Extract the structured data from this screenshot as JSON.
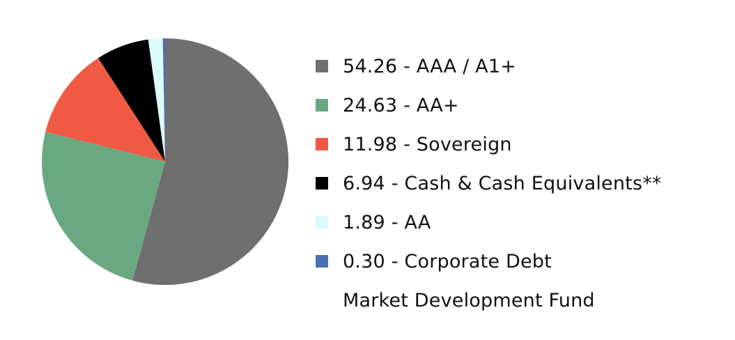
{
  "chart_data": {
    "type": "pie",
    "slices": [
      {
        "label": "54.26 - AAA / A1+",
        "value": 54.26,
        "color": "#6f6f6f"
      },
      {
        "label": "24.63 - AA+",
        "value": 24.63,
        "color": "#6aa882"
      },
      {
        "label": "11.98 - Sovereign",
        "value": 11.98,
        "color": "#f05a45"
      },
      {
        "label": "6.94 - Cash & Cash Equivalents**",
        "value": 6.94,
        "color": "#000000"
      },
      {
        "label": "1.89 - AA",
        "value": 1.89,
        "color": "#dcfbfb"
      },
      {
        "label": "0.30 - Corporate Debt",
        "value": 0.3,
        "color": "#4a6fb5"
      }
    ],
    "extra_label": "Market Development Fund",
    "legend_position": "right",
    "start": "top",
    "direction": "clockwise"
  }
}
